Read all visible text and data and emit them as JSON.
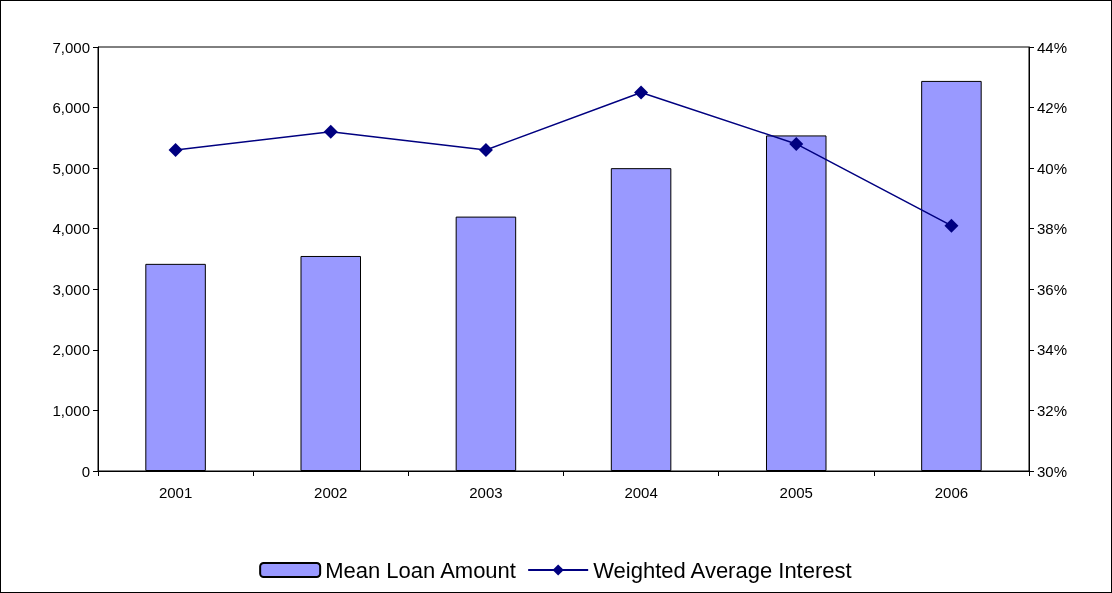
{
  "chart_data": {
    "type": "bar",
    "categories": [
      "2001",
      "2002",
      "2003",
      "2004",
      "2005",
      "2006"
    ],
    "series": [
      {
        "name": "Mean Loan Amount",
        "color": "#9999ff",
        "values": [
          3420,
          3550,
          4200,
          5000,
          5540,
          6440
        ]
      },
      {
        "name": "Weighted Average Interest",
        "type": "line",
        "axis": "y2",
        "color": "#000080",
        "marker": "diamond",
        "values": [
          40.6,
          41.2,
          40.6,
          42.5,
          40.8,
          38.1
        ]
      }
    ],
    "ylim": [
      0,
      7000
    ],
    "yticks": [
      0,
      {
        "value": 1000,
        "label": "1,000"
      },
      {
        "value": 2000,
        "label": "2,000"
      },
      {
        "value": 3000,
        "label": "3,000"
      },
      {
        "value": 4000,
        "label": "4,000"
      },
      {
        "value": 5000,
        "label": "5,000"
      },
      {
        "value": 6000,
        "label": "6,000"
      },
      {
        "value": 7000,
        "label": "7,000"
      }
    ],
    "y2lim": [
      30,
      44
    ],
    "y2ticks": [
      {
        "value": 30,
        "label": "30%"
      },
      {
        "value": 32,
        "label": "32%"
      },
      {
        "value": 34,
        "label": "34%"
      },
      {
        "value": 36,
        "label": "36%"
      },
      {
        "value": 38,
        "label": "38%"
      },
      {
        "value": 40,
        "label": "40%"
      },
      {
        "value": 42,
        "label": "42%"
      },
      {
        "value": 44,
        "label": "44%"
      }
    ],
    "grid": false,
    "legend": "bottom"
  }
}
